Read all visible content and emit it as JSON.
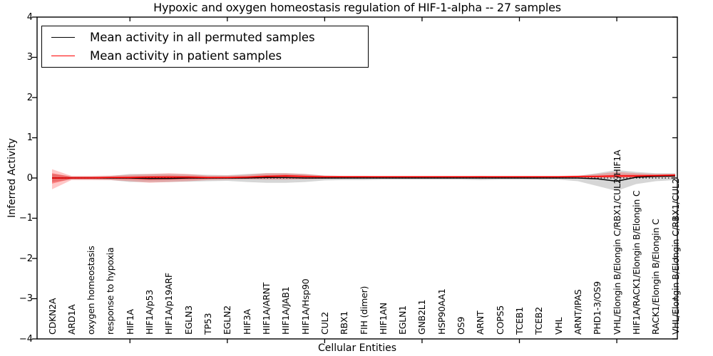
{
  "figure": {
    "title": "Hypoxic and oxygen homeostasis regulation of HIF-1-alpha -- 27 samples",
    "xlabel": "Cellular Entities",
    "ylabel": "Inferred Activity"
  },
  "legend": {
    "entries": [
      {
        "label": "Mean activity in all permuted samples",
        "color": "#000000"
      },
      {
        "label": "Mean activity in patient samples",
        "color": "#ff0000"
      }
    ]
  },
  "chart_data": {
    "type": "line",
    "title": "Hypoxic and oxygen homeostasis regulation of HIF-1-alpha -- 27 samples",
    "xlabel": "Cellular Entities",
    "ylabel": "Inferred Activity",
    "ylim": [
      -4,
      4
    ],
    "yticks": [
      4,
      3,
      2,
      1,
      0,
      -1,
      -2,
      -3,
      -4
    ],
    "xtick_marks_every": 5,
    "grid": false,
    "legend_position": "upper left",
    "zero_reference_line": "dotted",
    "categories": [
      "CDKN2A",
      "ARD1A",
      "oxygen homeostasis",
      "response to hypoxia",
      "HIF1A",
      "HIF1A/p53",
      "HIF1A/p19ARF",
      "EGLN3",
      "TP53",
      "EGLN2",
      "HIF3A",
      "HIF1A/ARNT",
      "HIF1A/JAB1",
      "HIF1A/Hsp90",
      "CUL2",
      "RBX1",
      "FIH (dimer)",
      "HIF1AN",
      "EGLN1",
      "GNB2L1",
      "HSP90AA1",
      "OS9",
      "ARNT",
      "COPS5",
      "TCEB1",
      "TCEB2",
      "VHL",
      "ARNT/IPAS",
      "PHD1-3/OS9",
      "VHL/Elongin B/Elongin C/RBX1/CUL2/HIF1A",
      "HIF1A/RACK1/Elongin B/Elongin C",
      "RACK1/Elongin B/Elongin C",
      "VHL/Elongin B/Elongin C/RBX1/CUL2"
    ],
    "series": [
      {
        "name": "Mean activity in all permuted samples",
        "color": "#000000",
        "values": [
          0,
          0,
          0,
          0,
          0,
          -0.01,
          -0.01,
          0,
          0,
          0,
          0,
          0.01,
          0.01,
          0,
          0,
          0,
          0,
          0,
          0,
          0,
          0,
          0,
          0,
          0,
          0,
          0,
          0,
          0,
          -0.02,
          -0.08,
          0.02,
          0.04,
          0.05
        ]
      },
      {
        "name": "Mean activity in patient samples",
        "color": "#ff0000",
        "values": [
          0,
          0,
          0,
          0.01,
          0.01,
          0.02,
          0.02,
          0.02,
          0.01,
          0.01,
          0.02,
          0.04,
          0.05,
          0.04,
          0.03,
          0.03,
          0.03,
          0.03,
          0.03,
          0.03,
          0.03,
          0.03,
          0.03,
          0.03,
          0.03,
          0.03,
          0.03,
          0.04,
          0.04,
          0.05,
          0.05,
          0.06,
          0.07
        ]
      }
    ],
    "bands": [
      {
        "name": "permuted-samples-range",
        "color": "#999999",
        "opacity": 0.4,
        "hi": [
          0.1,
          0.04,
          0.04,
          0.05,
          0.1,
          0.1,
          0.1,
          0.09,
          0.08,
          0.07,
          0.1,
          0.12,
          0.12,
          0.1,
          0.06,
          0.05,
          0.05,
          0.04,
          0.04,
          0.04,
          0.04,
          0.04,
          0.05,
          0.04,
          0.04,
          0.04,
          0.04,
          0.05,
          0.12,
          0.2,
          0.15,
          0.12,
          0.12
        ],
        "lo": [
          -0.1,
          -0.04,
          -0.04,
          -0.05,
          -0.1,
          -0.1,
          -0.1,
          -0.09,
          -0.08,
          -0.07,
          -0.1,
          -0.12,
          -0.12,
          -0.1,
          -0.06,
          -0.05,
          -0.05,
          -0.04,
          -0.04,
          -0.04,
          -0.04,
          -0.04,
          -0.05,
          -0.04,
          -0.04,
          -0.04,
          -0.04,
          -0.08,
          -0.2,
          -0.32,
          -0.15,
          -0.08,
          -0.05
        ]
      },
      {
        "name": "patient-samples-range",
        "color": "#ff0000",
        "opacity": 0.22,
        "hi": [
          0.22,
          0.05,
          0.05,
          0.06,
          0.08,
          0.1,
          0.12,
          0.1,
          0.06,
          0.06,
          0.08,
          0.12,
          0.12,
          0.1,
          0.06,
          0.05,
          0.05,
          0.05,
          0.05,
          0.05,
          0.05,
          0.05,
          0.05,
          0.05,
          0.05,
          0.05,
          0.05,
          0.06,
          0.1,
          0.15,
          0.12,
          0.1,
          0.1
        ],
        "lo": [
          -0.28,
          -0.05,
          -0.05,
          -0.05,
          -0.08,
          -0.12,
          -0.1,
          -0.08,
          -0.05,
          -0.04,
          -0.03,
          -0.04,
          -0.04,
          -0.03,
          -0.02,
          -0.01,
          -0.01,
          -0.01,
          -0.01,
          -0.01,
          -0.01,
          -0.01,
          -0.01,
          -0.01,
          -0.01,
          -0.01,
          -0.01,
          0.0,
          0.0,
          0.0,
          0.01,
          0.02,
          0.02
        ],
        "name2": ""
      },
      {
        "name": "patient-samples-core",
        "color": "#ff0000",
        "opacity": 0.35,
        "hi": [
          0.12,
          0.03,
          0.03,
          0.03,
          0.04,
          0.05,
          0.06,
          0.05,
          0.03,
          0.03,
          0.04,
          0.07,
          0.08,
          0.06,
          0.04,
          0.04,
          0.04,
          0.04,
          0.04,
          0.04,
          0.04,
          0.04,
          0.04,
          0.04,
          0.04,
          0.04,
          0.04,
          0.05,
          0.06,
          0.08,
          0.08,
          0.08,
          0.09
        ],
        "lo": [
          -0.14,
          -0.02,
          -0.02,
          -0.02,
          -0.03,
          -0.05,
          -0.04,
          -0.03,
          -0.02,
          -0.01,
          -0.01,
          0.0,
          0.0,
          0.0,
          0.01,
          0.01,
          0.01,
          0.01,
          0.01,
          0.01,
          0.01,
          0.01,
          0.01,
          0.01,
          0.01,
          0.01,
          0.01,
          0.02,
          0.02,
          0.02,
          0.02,
          0.03,
          0.04
        ]
      }
    ]
  }
}
